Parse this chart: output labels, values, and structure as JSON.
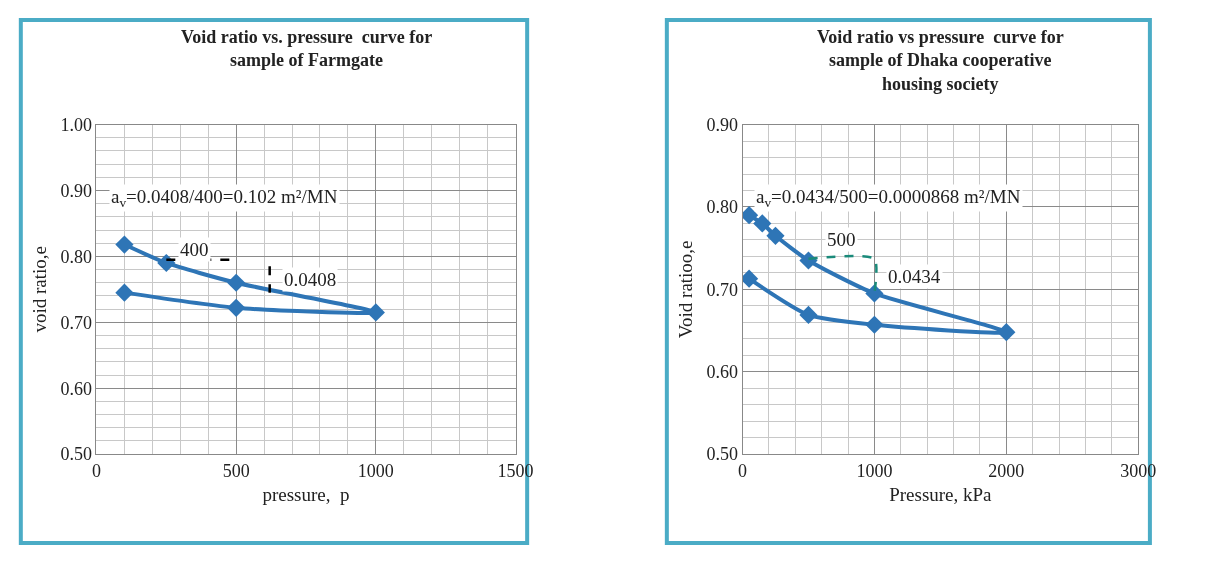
{
  "chart_data": [
    {
      "type": "line",
      "title": "Void ratio vs. pressure  curve for sample of Farmgate",
      "xlabel": "pressure,  p",
      "ylabel": "void ratio,e",
      "xlim": [
        0,
        1500
      ],
      "xticks": [
        0,
        500,
        1000,
        1500
      ],
      "ylim": [
        0.5,
        1.0
      ],
      "yticks": [
        {
          "value": 0.5,
          "label": "0.50"
        },
        {
          "value": 0.6,
          "label": "0.60"
        },
        {
          "value": 0.7,
          "label": "0.70"
        },
        {
          "value": 0.8,
          "label": "0.80"
        },
        {
          "value": 0.9,
          "label": "0.90"
        },
        {
          "value": 1.0,
          "label": "1.00"
        }
      ],
      "grid": true,
      "marker": "diamond",
      "series": [
        {
          "color": "#2e75b6",
          "x": [
            100,
            250,
            500,
            1000,
            500,
            100
          ],
          "values": [
            0.818,
            0.79,
            0.76,
            0.715,
            0.722,
            0.745
          ]
        },
        {
          "color": "#000000",
          "x": [
            250,
            500
          ],
          "values": [
            0.795,
            0.795
          ],
          "marker": "none",
          "line_style": "dashed"
        },
        {
          "color": "#000000",
          "x": [
            620,
            620
          ],
          "values": [
            0.785,
            0.745
          ],
          "marker": "none",
          "line_style": "dashed"
        }
      ],
      "annotations": [
        "a$_{v}$=0.0408/400=0.102 m²/MN",
        {
          "text": "400",
          "x": 350,
          "y": 0.81
        },
        {
          "text": "0.0408",
          "x": 620,
          "y": 0.765
        }
      ]
    },
    {
      "type": "line",
      "title": "Void ratio vs pressure  curve for sample of Dhaka cooperative housing society",
      "xlabel": "Pressure, kPa",
      "ylabel": "Void ratioo,e",
      "xlim": [
        0,
        3000
      ],
      "xticks": [
        0,
        1000,
        2000,
        3000
      ],
      "ylim": [
        0.5,
        0.9
      ],
      "yticks": [
        {
          "value": 0.5,
          "label": "0.50"
        },
        {
          "value": 0.6,
          "label": "0.60"
        },
        {
          "value": 0.7,
          "label": "0.70"
        },
        {
          "value": 0.8,
          "label": "0.80"
        },
        {
          "value": 0.9,
          "label": "0.90"
        }
      ],
      "grid": true,
      "marker": "diamond",
      "series": [
        {
          "color": "#2e75b6",
          "x": [
            50,
            150,
            250,
            500,
            1000,
            2000,
            1000,
            500,
            50
          ],
          "values": [
            0.79,
            0.78,
            0.765,
            0.735,
            0.695,
            0.648,
            0.657,
            0.669,
            0.713
          ]
        },
        {
          "color": "#1a8a7a",
          "x": [
            500,
            1000,
            1000
          ],
          "values": [
            0.737,
            0.737,
            0.695
          ],
          "marker": "none",
          "line_style": "dashed"
        }
      ],
      "annotations": [
        "a$_{v}$=0.0434/500=0.0000868 m²/MN",
        {
          "text": "500",
          "x": 750,
          "y": 0.76
        },
        {
          "text": "0.0434",
          "x": 1000,
          "y": 0.715
        }
      ]
    }
  ]
}
